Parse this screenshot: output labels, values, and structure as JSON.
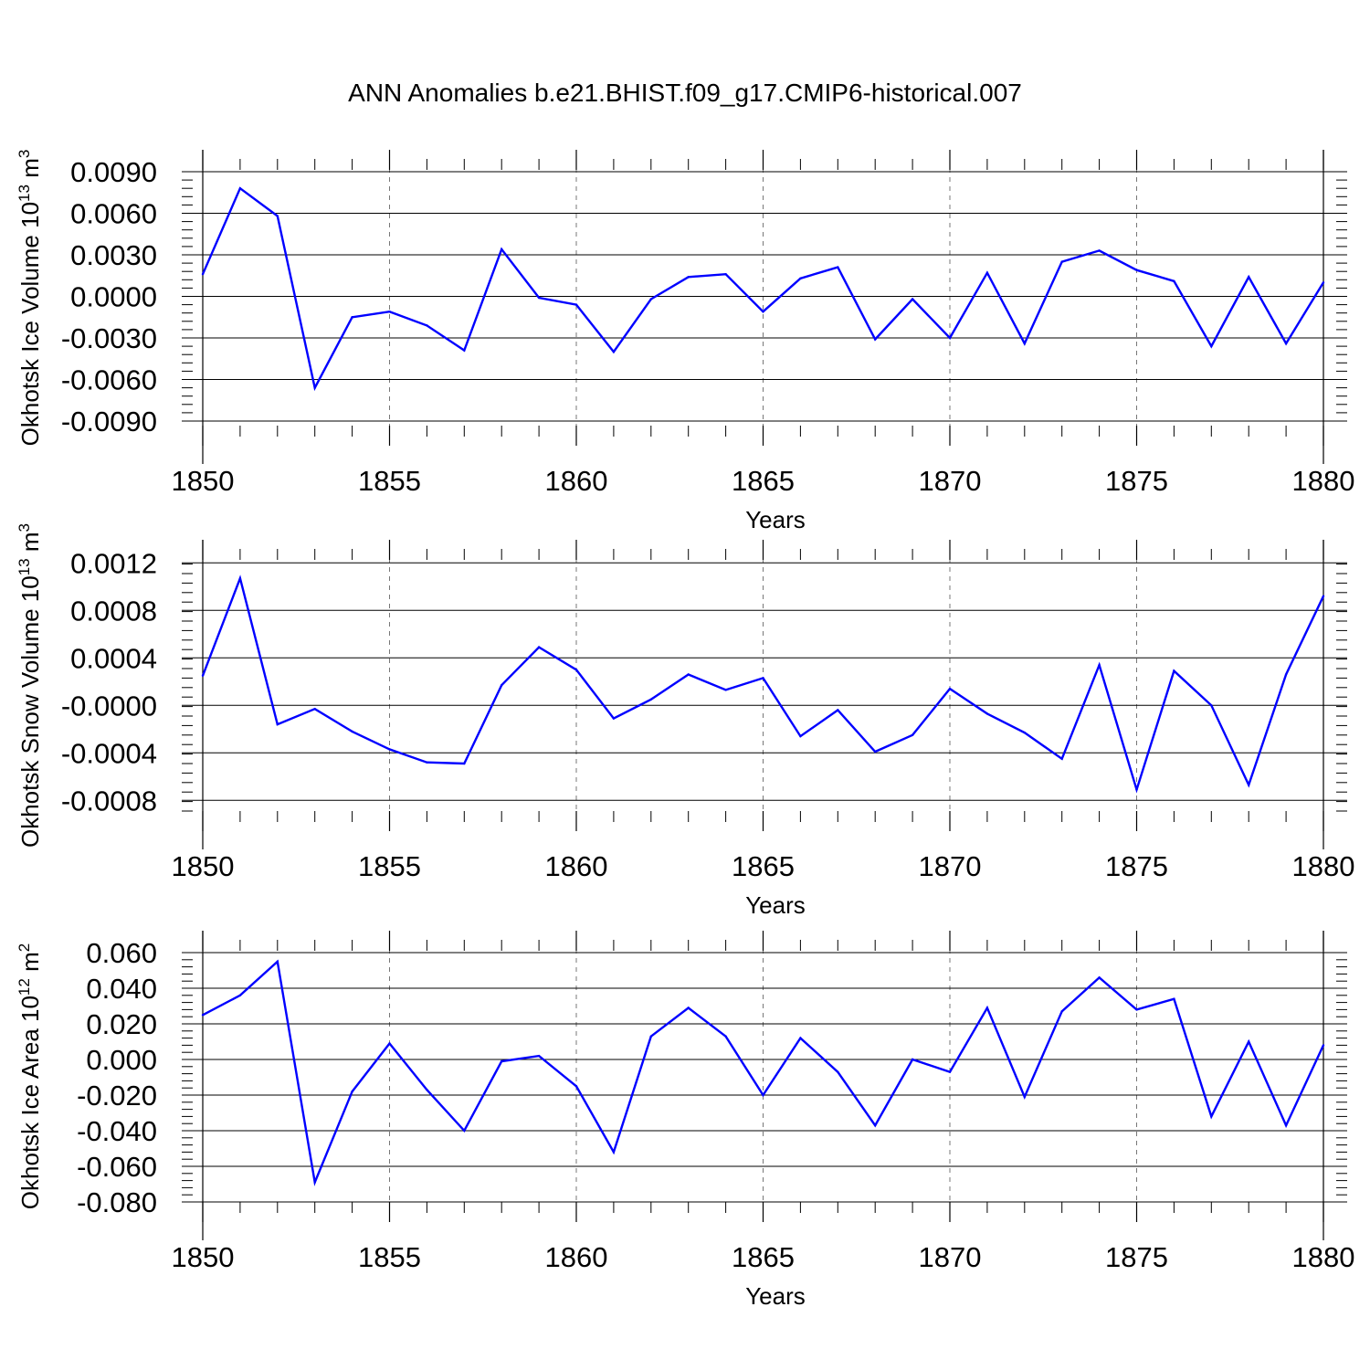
{
  "title": "ANN Anomalies b.e21.BHIST.f09_g17.CMIP6-historical.007",
  "line_color": "#0000ff",
  "chart_data": [
    {
      "type": "line",
      "ylabel": "Okhotsk Ice Volume 10",
      "ylabel_exp": "13",
      "ylabel_unit": " m",
      "ylabel_unit_exp": "3",
      "xlabel": "Years",
      "xlim": [
        1850,
        1880
      ],
      "ylim": [
        -0.009,
        0.009
      ],
      "ytick_values": [
        0.009,
        0.006,
        0.003,
        0.0,
        -0.003,
        -0.006,
        -0.009
      ],
      "ytick_labels": [
        "0.0090",
        "0.0060",
        "0.0030",
        "0.0000",
        "-0.0030",
        "-0.0060",
        "-0.0090"
      ],
      "xtick_values": [
        1850,
        1855,
        1860,
        1865,
        1870,
        1875,
        1880
      ],
      "xtick_labels": [
        "1850",
        "1855",
        "1860",
        "1865",
        "1870",
        "1875",
        "1880"
      ],
      "x": [
        1850,
        1851,
        1852,
        1853,
        1854,
        1855,
        1856,
        1857,
        1858,
        1859,
        1860,
        1861,
        1862,
        1863,
        1864,
        1865,
        1866,
        1867,
        1868,
        1869,
        1870,
        1871,
        1872,
        1873,
        1874,
        1875,
        1876,
        1877,
        1878,
        1879,
        1880
      ],
      "values": [
        0.0016,
        0.0078,
        0.0058,
        -0.0066,
        -0.0015,
        -0.0011,
        -0.0021,
        -0.0039,
        0.0034,
        -0.0001,
        -0.0006,
        -0.004,
        -0.0002,
        0.0014,
        0.0016,
        -0.0011,
        0.0013,
        0.0021,
        -0.0031,
        -0.0002,
        -0.003,
        0.0017,
        -0.0034,
        0.0025,
        0.0033,
        0.0019,
        0.0011,
        -0.0036,
        0.0014,
        -0.0034,
        0.001
      ]
    },
    {
      "type": "line",
      "ylabel": "Okhotsk Snow Volume 10",
      "ylabel_exp": "13",
      "ylabel_unit": " m",
      "ylabel_unit_exp": "3",
      "xlabel": "Years",
      "xlim": [
        1850,
        1880
      ],
      "ylim": [
        -0.00089,
        0.00121
      ],
      "ytick_values": [
        0.0012,
        0.0008,
        0.0004,
        0.0,
        -0.0004,
        -0.0008
      ],
      "ytick_labels": [
        "0.0012",
        "0.0008",
        "0.0004",
        "-0.0000",
        "-0.0004",
        "-0.0008"
      ],
      "xtick_values": [
        1850,
        1855,
        1860,
        1865,
        1870,
        1875,
        1880
      ],
      "xtick_labels": [
        "1850",
        "1855",
        "1860",
        "1865",
        "1870",
        "1875",
        "1880"
      ],
      "x": [
        1850,
        1851,
        1852,
        1853,
        1854,
        1855,
        1856,
        1857,
        1858,
        1859,
        1860,
        1861,
        1862,
        1863,
        1864,
        1865,
        1866,
        1867,
        1868,
        1869,
        1870,
        1871,
        1872,
        1873,
        1874,
        1875,
        1876,
        1877,
        1878,
        1879,
        1880
      ],
      "values": [
        0.00025,
        0.00107,
        -0.00016,
        -3e-05,
        -0.00022,
        -0.00037,
        -0.00048,
        -0.00049,
        0.00017,
        0.00049,
        0.0003,
        -0.00011,
        5e-05,
        0.00026,
        0.00013,
        0.00023,
        -0.00026,
        -4e-05,
        -0.00039,
        -0.00025,
        0.00014,
        -7e-05,
        -0.00023,
        -0.00045,
        0.00034,
        -0.00071,
        0.00029,
        0.0,
        -0.00067,
        0.00026,
        0.00092
      ]
    },
    {
      "type": "line",
      "ylabel": "Okhotsk Ice Area 10",
      "ylabel_exp": "12",
      "ylabel_unit": " m",
      "ylabel_unit_exp": "2",
      "xlabel": "Years",
      "xlim": [
        1850,
        1880
      ],
      "ylim": [
        -0.08,
        0.06
      ],
      "ytick_values": [
        0.06,
        0.04,
        0.02,
        0.0,
        -0.02,
        -0.04,
        -0.06,
        -0.08
      ],
      "ytick_labels": [
        "0.060",
        "0.040",
        "0.020",
        "0.000",
        "-0.020",
        "-0.040",
        "-0.060",
        "-0.080"
      ],
      "xtick_values": [
        1850,
        1855,
        1860,
        1865,
        1870,
        1875,
        1880
      ],
      "xtick_labels": [
        "1850",
        "1855",
        "1860",
        "1865",
        "1870",
        "1875",
        "1880"
      ],
      "x": [
        1850,
        1851,
        1852,
        1853,
        1854,
        1855,
        1856,
        1857,
        1858,
        1859,
        1860,
        1861,
        1862,
        1863,
        1864,
        1865,
        1866,
        1867,
        1868,
        1869,
        1870,
        1871,
        1872,
        1873,
        1874,
        1875,
        1876,
        1877,
        1878,
        1879,
        1880
      ],
      "values": [
        0.025,
        0.036,
        0.055,
        -0.069,
        -0.018,
        0.009,
        -0.017,
        -0.04,
        -0.001,
        0.002,
        -0.015,
        -0.052,
        0.013,
        0.029,
        0.013,
        -0.02,
        0.012,
        -0.007,
        -0.037,
        0.0,
        -0.007,
        0.029,
        -0.021,
        0.027,
        0.046,
        0.028,
        0.034,
        -0.032,
        0.01,
        -0.037,
        0.008
      ]
    }
  ]
}
